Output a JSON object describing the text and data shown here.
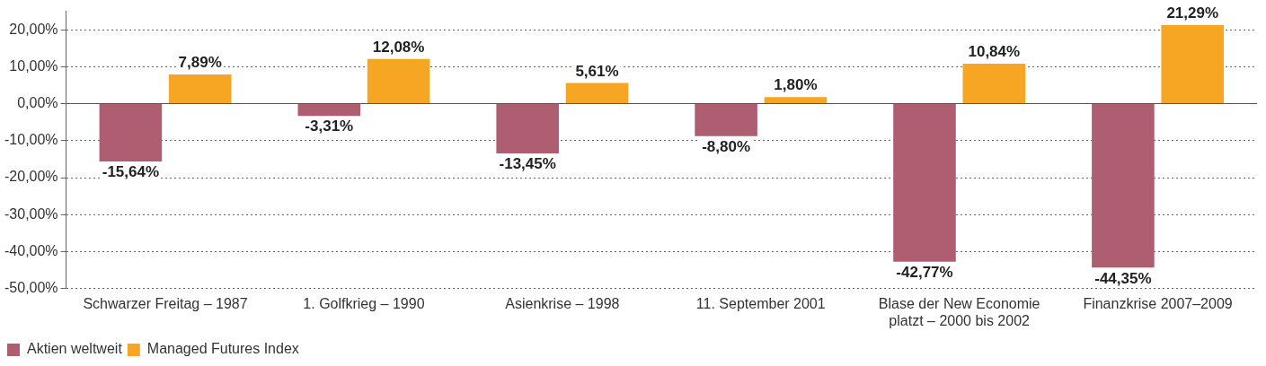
{
  "chart_data": {
    "type": "bar",
    "categories": [
      "Schwarzer Freitag – 1987",
      "1. Golfkrieg – 1990",
      "Asienkrise – 1998",
      "11. September 2001",
      "Blase der New Economie platzt – 2000 bis 2002",
      "Finanzkrise 2007–2009"
    ],
    "series": [
      {
        "name": "Aktien weltweit",
        "color": "#ae5e70",
        "values": [
          -15.64,
          -3.31,
          -13.45,
          -8.8,
          -42.77,
          -44.35
        ],
        "value_labels": [
          "-15,64%",
          "-3,31%",
          "-13,45%",
          "-8,80%",
          "-42,77%",
          "-44,35%"
        ]
      },
      {
        "name": "Managed Futures Index",
        "color": "#f6a623",
        "values": [
          7.89,
          12.08,
          5.61,
          1.8,
          10.84,
          21.29
        ],
        "value_labels": [
          "7,89%",
          "12,08%",
          "5,61%",
          "1,80%",
          "10,84%",
          "21,29%"
        ]
      }
    ],
    "ylim": [
      -50,
      25
    ],
    "yticks": [
      {
        "value": -50,
        "label": "-50,00%"
      },
      {
        "value": -40,
        "label": "-40,00%"
      },
      {
        "value": -30,
        "label": "-30,00%"
      },
      {
        "value": -20,
        "label": "-20,00%"
      },
      {
        "value": -10,
        "label": "-10,00%"
      },
      {
        "value": 0,
        "label": "0,00%"
      },
      {
        "value": 10,
        "label": "10,00%"
      },
      {
        "value": 20,
        "label": "20,00%"
      }
    ],
    "grid": "y",
    "legend": "bottom left"
  }
}
